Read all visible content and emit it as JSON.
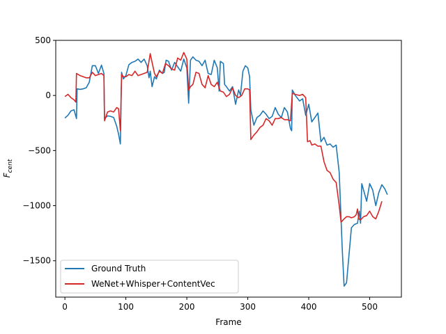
{
  "chart_data": {
    "type": "line",
    "xlabel": "Frame",
    "ylabel_main": "F",
    "ylabel_sub": "cent",
    "xlim": [
      -15,
      552
    ],
    "ylim": [
      -1830,
      500
    ],
    "xticks": [
      0,
      100,
      200,
      300,
      400,
      500
    ],
    "yticks": [
      500,
      0,
      -500,
      -1000,
      -1500
    ],
    "xtick_labels": [
      "0",
      "100",
      "200",
      "300",
      "400",
      "500"
    ],
    "ytick_labels": [
      "500",
      "0",
      "−500",
      "−1000",
      "−1500"
    ],
    "legend_position": "lower-left",
    "grid": false,
    "series": [
      {
        "name": "Ground Truth",
        "color": "#1f77b4",
        "points": [
          [
            0,
            -205
          ],
          [
            5,
            -180
          ],
          [
            10,
            -140
          ],
          [
            15,
            -130
          ],
          [
            19,
            -210
          ],
          [
            20,
            60
          ],
          [
            25,
            55
          ],
          [
            30,
            60
          ],
          [
            35,
            70
          ],
          [
            40,
            120
          ],
          [
            45,
            270
          ],
          [
            50,
            270
          ],
          [
            55,
            200
          ],
          [
            60,
            275
          ],
          [
            64,
            200
          ],
          [
            65,
            -210
          ],
          [
            70,
            -185
          ],
          [
            75,
            -190
          ],
          [
            80,
            -200
          ],
          [
            85,
            -280
          ],
          [
            88,
            -350
          ],
          [
            91,
            -440
          ],
          [
            93,
            210
          ],
          [
            96,
            150
          ],
          [
            100,
            180
          ],
          [
            105,
            280
          ],
          [
            110,
            300
          ],
          [
            115,
            310
          ],
          [
            120,
            330
          ],
          [
            125,
            300
          ],
          [
            130,
            330
          ],
          [
            135,
            270
          ],
          [
            138,
            160
          ],
          [
            140,
            220
          ],
          [
            143,
            80
          ],
          [
            147,
            170
          ],
          [
            150,
            150
          ],
          [
            155,
            230
          ],
          [
            160,
            200
          ],
          [
            163,
            210
          ],
          [
            166,
            320
          ],
          [
            170,
            310
          ],
          [
            175,
            230
          ],
          [
            180,
            300
          ],
          [
            185,
            260
          ],
          [
            190,
            220
          ],
          [
            195,
            330
          ],
          [
            200,
            250
          ],
          [
            203,
            -70
          ],
          [
            206,
            320
          ],
          [
            210,
            350
          ],
          [
            215,
            320
          ],
          [
            220,
            310
          ],
          [
            225,
            270
          ],
          [
            230,
            320
          ],
          [
            235,
            200
          ],
          [
            240,
            190
          ],
          [
            245,
            320
          ],
          [
            250,
            250
          ],
          [
            253,
            40
          ],
          [
            255,
            310
          ],
          [
            260,
            290
          ],
          [
            262,
            100
          ],
          [
            265,
            80
          ],
          [
            270,
            40
          ],
          [
            275,
            80
          ],
          [
            280,
            -80
          ],
          [
            285,
            50
          ],
          [
            288,
            0
          ],
          [
            292,
            220
          ],
          [
            296,
            270
          ],
          [
            300,
            250
          ],
          [
            303,
            170
          ],
          [
            305,
            -130
          ],
          [
            310,
            -270
          ],
          [
            315,
            -200
          ],
          [
            320,
            -180
          ],
          [
            325,
            -140
          ],
          [
            330,
            -170
          ],
          [
            335,
            -210
          ],
          [
            340,
            -190
          ],
          [
            345,
            -110
          ],
          [
            350,
            -170
          ],
          [
            355,
            -200
          ],
          [
            360,
            -110
          ],
          [
            365,
            -150
          ],
          [
            370,
            -300
          ],
          [
            372,
            -320
          ],
          [
            373,
            50
          ],
          [
            378,
            0
          ],
          [
            385,
            -50
          ],
          [
            390,
            -30
          ],
          [
            395,
            -180
          ],
          [
            400,
            -80
          ],
          [
            405,
            -240
          ],
          [
            410,
            -200
          ],
          [
            415,
            -160
          ],
          [
            420,
            -420
          ],
          [
            425,
            -380
          ],
          [
            430,
            -450
          ],
          [
            435,
            -440
          ],
          [
            440,
            -470
          ],
          [
            445,
            -450
          ],
          [
            450,
            -700
          ],
          [
            455,
            -1400
          ],
          [
            458,
            -1730
          ],
          [
            462,
            -1700
          ],
          [
            466,
            -1450
          ],
          [
            470,
            -1200
          ],
          [
            475,
            -1170
          ],
          [
            480,
            -1160
          ],
          [
            483,
            -1050
          ],
          [
            485,
            -1160
          ],
          [
            487,
            -800
          ],
          [
            490,
            -860
          ],
          [
            495,
            -960
          ],
          [
            500,
            -800
          ],
          [
            505,
            -860
          ],
          [
            510,
            -1000
          ],
          [
            515,
            -880
          ],
          [
            520,
            -810
          ],
          [
            525,
            -850
          ],
          [
            529,
            -900
          ]
        ]
      },
      {
        "name": "WeNet+Whisper+ContentVec",
        "color": "#d62728",
        "points": [
          [
            0,
            -10
          ],
          [
            5,
            10
          ],
          [
            10,
            -20
          ],
          [
            15,
            -40
          ],
          [
            18,
            -60
          ],
          [
            19,
            200
          ],
          [
            25,
            180
          ],
          [
            30,
            170
          ],
          [
            35,
            160
          ],
          [
            40,
            160
          ],
          [
            45,
            210
          ],
          [
            50,
            180
          ],
          [
            55,
            190
          ],
          [
            60,
            200
          ],
          [
            64,
            180
          ],
          [
            65,
            -230
          ],
          [
            70,
            -150
          ],
          [
            75,
            -140
          ],
          [
            80,
            -150
          ],
          [
            85,
            -110
          ],
          [
            88,
            -120
          ],
          [
            91,
            -320
          ],
          [
            93,
            190
          ],
          [
            96,
            170
          ],
          [
            100,
            170
          ],
          [
            105,
            190
          ],
          [
            110,
            180
          ],
          [
            115,
            220
          ],
          [
            120,
            180
          ],
          [
            125,
            190
          ],
          [
            130,
            200
          ],
          [
            135,
            210
          ],
          [
            140,
            380
          ],
          [
            143,
            300
          ],
          [
            147,
            200
          ],
          [
            150,
            170
          ],
          [
            155,
            220
          ],
          [
            160,
            200
          ],
          [
            165,
            290
          ],
          [
            170,
            270
          ],
          [
            175,
            240
          ],
          [
            180,
            230
          ],
          [
            185,
            340
          ],
          [
            190,
            320
          ],
          [
            195,
            390
          ],
          [
            200,
            330
          ],
          [
            203,
            50
          ],
          [
            206,
            80
          ],
          [
            210,
            100
          ],
          [
            215,
            210
          ],
          [
            220,
            200
          ],
          [
            225,
            100
          ],
          [
            230,
            70
          ],
          [
            235,
            180
          ],
          [
            240,
            100
          ],
          [
            245,
            80
          ],
          [
            250,
            120
          ],
          [
            255,
            40
          ],
          [
            260,
            30
          ],
          [
            265,
            -10
          ],
          [
            270,
            10
          ],
          [
            275,
            70
          ],
          [
            280,
            0
          ],
          [
            285,
            -20
          ],
          [
            290,
            0
          ],
          [
            295,
            60
          ],
          [
            300,
            60
          ],
          [
            303,
            50
          ],
          [
            305,
            -400
          ],
          [
            310,
            -360
          ],
          [
            315,
            -330
          ],
          [
            320,
            -290
          ],
          [
            325,
            -270
          ],
          [
            330,
            -210
          ],
          [
            335,
            -230
          ],
          [
            340,
            -270
          ],
          [
            345,
            -210
          ],
          [
            350,
            -210
          ],
          [
            355,
            -200
          ],
          [
            360,
            -220
          ],
          [
            365,
            -220
          ],
          [
            370,
            -230
          ],
          [
            373,
            20
          ],
          [
            378,
            10
          ],
          [
            385,
            0
          ],
          [
            390,
            10
          ],
          [
            395,
            -20
          ],
          [
            398,
            -420
          ],
          [
            402,
            -410
          ],
          [
            405,
            -450
          ],
          [
            410,
            -440
          ],
          [
            415,
            -460
          ],
          [
            420,
            -460
          ],
          [
            425,
            -600
          ],
          [
            430,
            -680
          ],
          [
            435,
            -700
          ],
          [
            440,
            -760
          ],
          [
            445,
            -790
          ],
          [
            450,
            -1000
          ],
          [
            453,
            -1150
          ],
          [
            458,
            -1120
          ],
          [
            462,
            -1100
          ],
          [
            466,
            -1100
          ],
          [
            470,
            -1110
          ],
          [
            475,
            -1100
          ],
          [
            478,
            -1080
          ],
          [
            480,
            -1030
          ],
          [
            482,
            -1120
          ],
          [
            485,
            -1130
          ],
          [
            490,
            -1100
          ],
          [
            495,
            -1090
          ],
          [
            500,
            -1050
          ],
          [
            505,
            -1100
          ],
          [
            510,
            -1120
          ],
          [
            515,
            -1050
          ],
          [
            520,
            -960
          ]
        ]
      }
    ]
  }
}
